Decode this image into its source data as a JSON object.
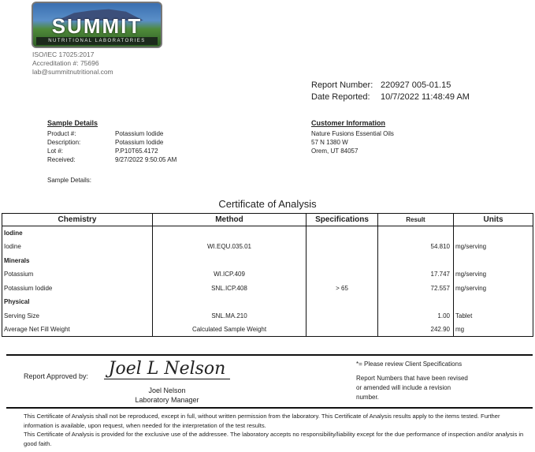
{
  "lab": {
    "logo_text": "SUMMIT",
    "logo_subtext": "NUTRITIONAL LABORATORIES",
    "iso": "ISO/IEC 17025:2017",
    "accreditation": "Accreditation #: 75696",
    "email": "lab@summitnutritional.com"
  },
  "report": {
    "number_label": "Report Number:",
    "number": "220927 005-01.15",
    "date_label": "Date Reported:",
    "date": "10/7/2022 11:48:49 AM"
  },
  "sample": {
    "title": "Sample Details",
    "rows": [
      {
        "k": "Product #:",
        "v": "Potassium Iodide"
      },
      {
        "k": "Description:",
        "v": "Potassium Iodide"
      },
      {
        "k": "Lot #:",
        "v": "P.P10T65.4172"
      },
      {
        "k": "Received:",
        "v": "9/27/2022 9:50:05 AM"
      }
    ],
    "details_label": "Sample Details:"
  },
  "customer": {
    "title": "Customer Information",
    "lines": [
      "Nature Fusions Essential Oils",
      "57 N 1380 W",
      "Orem, UT 84057"
    ]
  },
  "coa": {
    "title": "Certificate of Analysis",
    "headers": [
      "Chemistry",
      "Method",
      "Specifications",
      "Result",
      "Units"
    ],
    "rows": [
      {
        "group": "Iodine"
      },
      {
        "name": "Iodine",
        "method": "WI.EQU.035.01",
        "spec": "",
        "result": "54.810",
        "units": "mg/serving"
      },
      {
        "group": "Minerals"
      },
      {
        "name": "Potassium",
        "method": "WI.ICP.409",
        "spec": "",
        "result": "17.747",
        "units": "mg/serving"
      },
      {
        "name": "Potassium Iodide",
        "method": "SNL.ICP.408",
        "spec": "> 65",
        "result": "72.557",
        "units": "mg/serving"
      },
      {
        "group": "Physical"
      },
      {
        "name": "Serving Size",
        "method": "SNL.MA.210",
        "spec": "",
        "result": "1.00",
        "units": "Tablet"
      },
      {
        "name": "Average Net Fill Weight",
        "method": "Calculated Sample Weight",
        "spec": "",
        "result": "242.90",
        "units": "mg"
      }
    ]
  },
  "approval": {
    "label": "Report Approved by:",
    "signature": "Joel L Nelson",
    "name": "Joel Nelson",
    "role": "Laboratory Manager",
    "note1": "*= Please review Client Specifications",
    "note2": "Report Numbers that have been revised or amended will include a revision number."
  },
  "footer": [
    "This Certificate of Analysis shall not be reproduced, except in full, without written permission from the laboratory. This Certificate of Analysis results apply to the items tested. Further information is available, upon request, when needed for the interpretation of the test results.",
    "This Certificate of Analysis is provided for the exclusive use of the addressee. The laboratory accepts no responsibility/liability except for the due performance of inspection and/or analysis in good faith."
  ]
}
